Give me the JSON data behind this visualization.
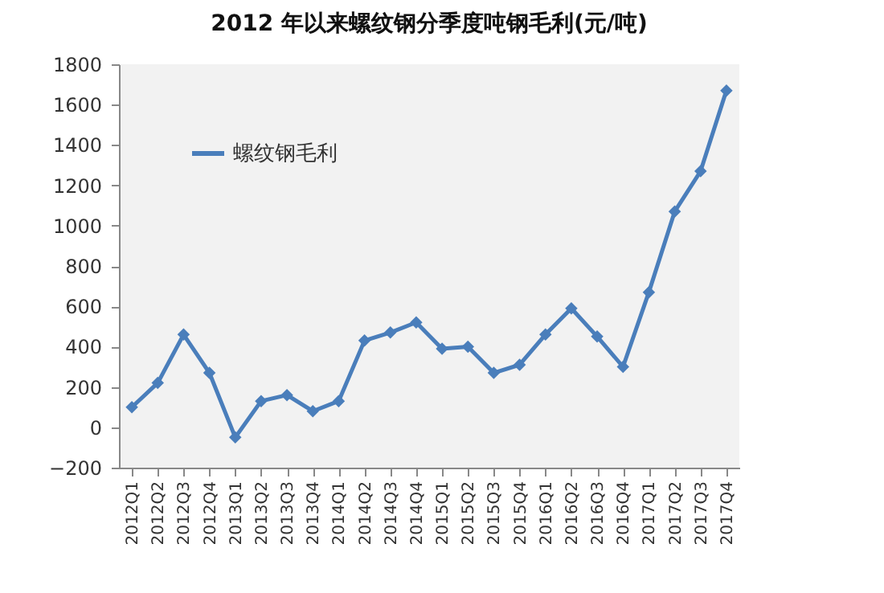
{
  "chart_data": {
    "type": "line",
    "title": "2012 年以来螺纹钢分季度吨钢毛利(元/吨)",
    "categories": [
      "2012Q1",
      "2012Q2",
      "2012Q3",
      "2012Q4",
      "2013Q1",
      "2013Q2",
      "2013Q3",
      "2013Q4",
      "2014Q1",
      "2014Q2",
      "2014Q3",
      "2014Q4",
      "2015Q1",
      "2015Q2",
      "2015Q3",
      "2015Q4",
      "2016Q1",
      "2016Q2",
      "2016Q3",
      "2016Q4",
      "2017Q1",
      "2017Q2",
      "2017Q3",
      "2017Q4"
    ],
    "series": [
      {
        "name": "螺纹钢毛利",
        "color": "#4a7ebb",
        "values": [
          100,
          220,
          460,
          270,
          -50,
          130,
          160,
          80,
          130,
          430,
          470,
          520,
          390,
          400,
          270,
          310,
          460,
          590,
          450,
          300,
          670,
          1070,
          1270,
          1670
        ]
      }
    ],
    "ylim": [
      -200,
      1800
    ],
    "yticks": [
      -200,
      0,
      200,
      400,
      600,
      800,
      1000,
      1200,
      1400,
      1600,
      1800
    ],
    "grid": false,
    "legend": "top left",
    "marker": "diamond",
    "line_style": "solid"
  }
}
